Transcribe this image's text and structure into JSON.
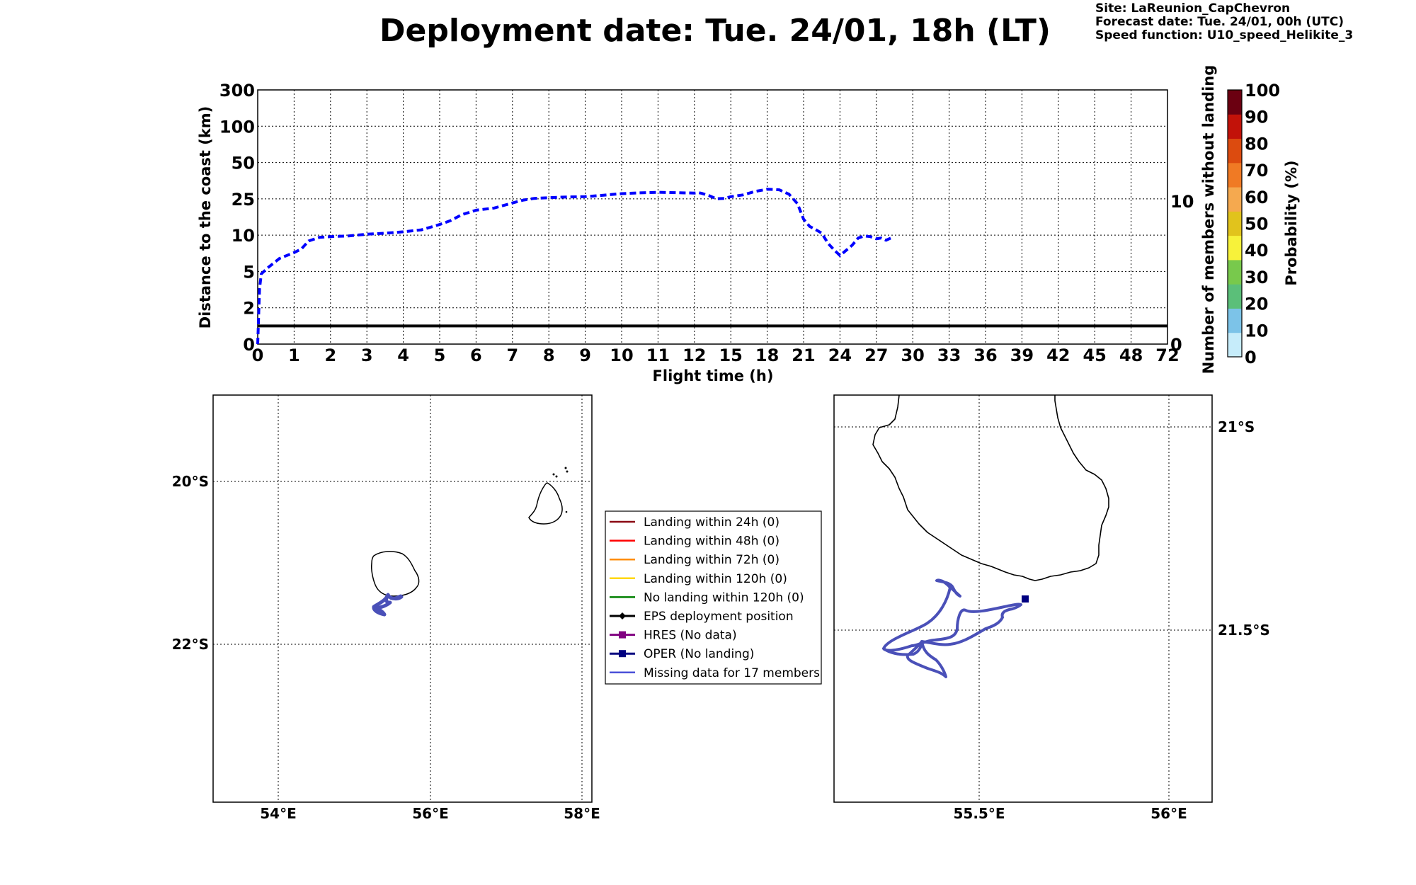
{
  "header": {
    "title": "Deployment date: Tue. 24/01, 18h (LT)",
    "site": "Site: LaReunion_CapChevron",
    "forecast": "Forecast date: Tue. 24/01, 00h (UTC)",
    "speed": "Speed function: U10_speed_Helikite_3"
  },
  "chart_data": {
    "type": "line",
    "xlabel": "Flight time (h)",
    "ylabel": "Distance to the coast (km)",
    "y2label": "Number of members without landing",
    "x_ticks": [
      "0",
      "1",
      "2",
      "3",
      "4",
      "5",
      "6",
      "7",
      "8",
      "9",
      "10",
      "11",
      "12",
      "15",
      "18",
      "21",
      "24",
      "27",
      "30",
      "33",
      "36",
      "39",
      "42",
      "45",
      "48",
      "72"
    ],
    "y_ticks": [
      "0",
      "2",
      "5",
      "10",
      "25",
      "50",
      "100",
      "300"
    ],
    "y2_ticks": [
      "10",
      "0"
    ],
    "grid": true,
    "series": [
      {
        "style": "dashed",
        "color": "#0000ff",
        "points": [
          [
            0,
            0
          ],
          [
            0.05,
            3.6
          ],
          [
            0.1,
            4.8
          ],
          [
            0.3,
            5.6
          ],
          [
            0.6,
            6.8
          ],
          [
            1.0,
            7.6
          ],
          [
            1.2,
            8.1
          ],
          [
            1.4,
            9.2
          ],
          [
            1.7,
            9.7
          ],
          [
            2.0,
            9.8
          ],
          [
            2.5,
            9.9
          ],
          [
            3.0,
            10.4
          ],
          [
            3.5,
            10.8
          ],
          [
            4.0,
            11.4
          ],
          [
            4.5,
            12.2
          ],
          [
            5.0,
            14.4
          ],
          [
            5.3,
            16.0
          ],
          [
            5.6,
            18.4
          ],
          [
            6.0,
            20.3
          ],
          [
            6.5,
            21.2
          ],
          [
            7.0,
            23.3
          ],
          [
            7.3,
            24.5
          ],
          [
            7.6,
            25.3
          ],
          [
            8.0,
            25.8
          ],
          [
            8.5,
            26.3
          ],
          [
            9.0,
            26.5
          ],
          [
            9.5,
            27.5
          ],
          [
            10.0,
            28.6
          ],
          [
            10.5,
            29.1
          ],
          [
            11.0,
            29.5
          ],
          [
            11.5,
            29.2
          ],
          [
            12.0,
            29.0
          ],
          [
            12.3,
            29.3
          ],
          [
            12.6,
            28.8
          ],
          [
            13.2,
            27.2
          ],
          [
            13.8,
            25.1
          ],
          [
            14.5,
            25.3
          ],
          [
            15.0,
            26.5
          ],
          [
            16.0,
            27.7
          ],
          [
            17.0,
            30.1
          ],
          [
            18.0,
            31.6
          ],
          [
            19.0,
            31.2
          ],
          [
            19.8,
            28.2
          ],
          [
            20.5,
            23.0
          ],
          [
            21.0,
            16.6
          ],
          [
            21.5,
            13.6
          ],
          [
            22.0,
            12.3
          ],
          [
            22.5,
            10.8
          ],
          [
            23.0,
            8.9
          ],
          [
            23.5,
            8.0
          ],
          [
            24.0,
            7.2
          ],
          [
            24.5,
            7.9
          ],
          [
            25.0,
            8.6
          ],
          [
            25.5,
            9.6
          ],
          [
            26.0,
            9.9
          ],
          [
            26.5,
            9.8
          ],
          [
            27.0,
            9.5
          ],
          [
            27.4,
            9.6
          ],
          [
            27.8,
            9.3
          ],
          [
            28.2,
            9.6
          ]
        ]
      }
    ],
    "members_without_landing": 0,
    "colorbar": {
      "label": "Probability (%)",
      "ticks": [
        "0",
        "10",
        "20",
        "30",
        "40",
        "50",
        "60",
        "70",
        "80",
        "90",
        "100"
      ],
      "colors": [
        "#c6ecfa",
        "#7cc3e8",
        "#5bbf79",
        "#78c94c",
        "#f7f23a",
        "#e1c31c",
        "#f5a94f",
        "#f07a24",
        "#dc4b0f",
        "#c21209",
        "#6b0011"
      ]
    }
  },
  "maps": {
    "left": {
      "lon_ticks": [
        "54°E",
        "56°E",
        "58°E"
      ],
      "lat_ticks": [
        "20°S",
        "22°S"
      ]
    },
    "right": {
      "lon_ticks": [
        "55.5°E",
        "56°E"
      ],
      "lat_ticks": [
        "21°S",
        "21.5°S"
      ]
    }
  },
  "legend": {
    "items": [
      {
        "label": "Landing within 24h (0)",
        "color": "#8b0a14",
        "marker": "none"
      },
      {
        "label": "Landing within 48h (0)",
        "color": "#ff0000",
        "marker": "none"
      },
      {
        "label": "Landing within 72h (0)",
        "color": "#ff8c00",
        "marker": "none"
      },
      {
        "label": "Landing within 120h (0)",
        "color": "#ffd700",
        "marker": "none"
      },
      {
        "label": "No landing within 120h (0)",
        "color": "#008000",
        "marker": "none"
      },
      {
        "label": "EPS deployment position",
        "color": "#000000",
        "marker": "diamond"
      },
      {
        "label": "HRES (No data)",
        "color": "#800080",
        "marker": "square"
      },
      {
        "label": "OPER (No landing)",
        "color": "#000080",
        "marker": "square"
      },
      {
        "label": "Missing data for 17 members",
        "color": "#4a50d8",
        "marker": "none"
      }
    ]
  }
}
